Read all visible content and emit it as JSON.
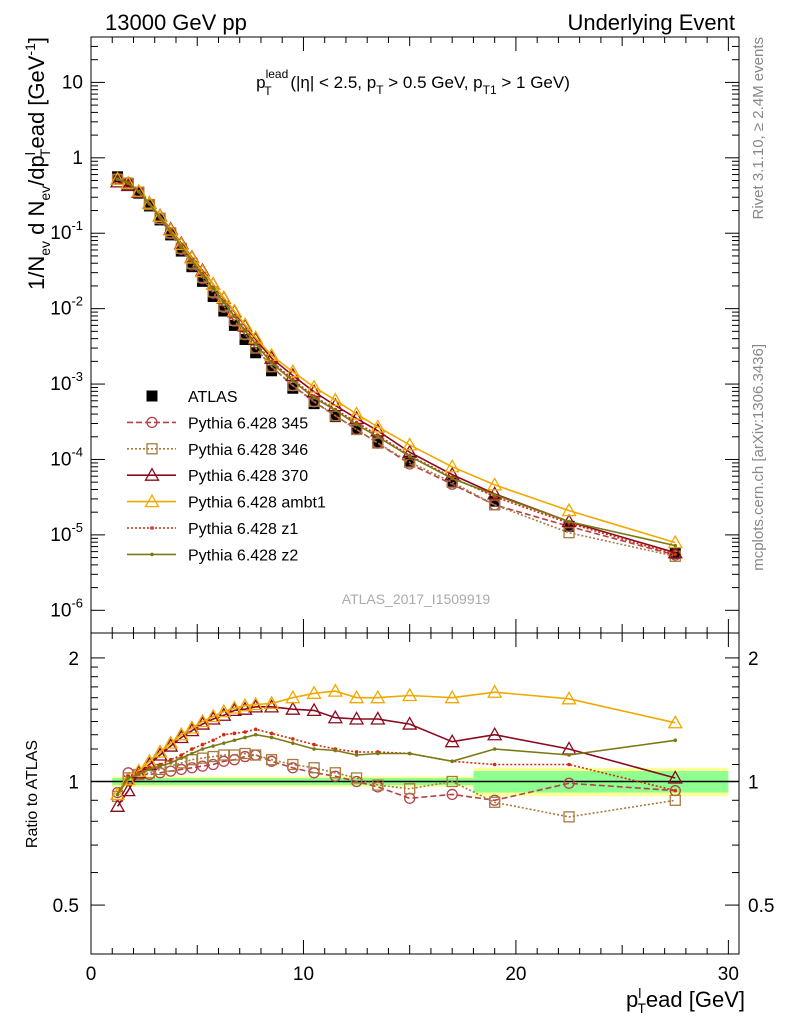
{
  "header": {
    "left": "13000 GeV pp",
    "right": "Underlying Event"
  },
  "rivet_label": "Rivet 3.1.10, ≥ 2.4M events",
  "mcplots_label": "mcplots.cern.ch [arXiv:1306.3436]",
  "analysis_id": "ATLAS_2017_I1509919",
  "colors": {
    "ATLAS": "#000000",
    "p345": "#b5424a",
    "p346": "#a87a3c",
    "p370": "#8b0a1e",
    "ambt1": "#f0a800",
    "z1": "#d62a10",
    "z2": "#7a7a14",
    "band_inner": "#8fff8f",
    "band_outer": "#ffff99"
  },
  "chart_data": [
    {
      "type": "line",
      "panel": "main",
      "title_base": "p",
      "title_sup": "lead",
      "title_sub": "T",
      "title_rest": " (|η| < 2.5, p",
      "title_sub2": "T",
      "title_rest2": " > 0.5 GeV, p",
      "title_sub3": "T1",
      "title_rest3": " > 1 GeV)",
      "ylabel_parts": [
        "1/N",
        "ev",
        " d N",
        "ev",
        "/dp",
        "l",
        "T",
        "ead [GeV",
        "-1",
        "]"
      ],
      "yscale": "log",
      "ylim": [
        5e-07,
        40
      ],
      "xlim": [
        0,
        30.5
      ],
      "y_ticks": [
        {
          "v": 1e-06,
          "base": "10",
          "exp": "-6"
        },
        {
          "v": 1e-05,
          "base": "10",
          "exp": "-5"
        },
        {
          "v": 0.0001,
          "base": "10",
          "exp": "-4"
        },
        {
          "v": 0.001,
          "base": "10",
          "exp": "-3"
        },
        {
          "v": 0.01,
          "base": "10",
          "exp": "-2"
        },
        {
          "v": 0.1,
          "base": "10",
          "exp": "-1"
        },
        {
          "v": 1,
          "base": "1",
          "exp": ""
        },
        {
          "v": 10,
          "base": "10",
          "exp": ""
        }
      ],
      "legend_position": "middle-left",
      "x": [
        1.25,
        1.75,
        2.25,
        2.75,
        3.25,
        3.75,
        4.25,
        4.75,
        5.25,
        5.75,
        6.25,
        6.75,
        7.25,
        7.75,
        8.5,
        9.5,
        10.5,
        11.5,
        12.5,
        13.5,
        15,
        17,
        19,
        22.5,
        27.5
      ],
      "series": [
        {
          "name": "ATLAS",
          "key": "ATLAS",
          "marker": "filled-square",
          "line": "none",
          "values": [
            0.56,
            0.45,
            0.34,
            0.23,
            0.15,
            0.095,
            0.058,
            0.036,
            0.023,
            0.0145,
            0.0093,
            0.006,
            0.0039,
            0.0026,
            0.0015,
            0.00088,
            0.00055,
            0.00037,
            0.00025,
            0.00017,
            9.5e-05,
            5e-05,
            2.8e-05,
            1.3e-05,
            5.7e-06
          ]
        },
        {
          "name": "Pythia 6.428 345",
          "key": "p345",
          "marker": "open-circle",
          "line": "dashed",
          "values": [
            0.53,
            0.47,
            0.35,
            0.24,
            0.155,
            0.099,
            0.061,
            0.038,
            0.025,
            0.016,
            0.0104,
            0.0068,
            0.0045,
            0.003,
            0.0017,
            0.00095,
            0.00058,
            0.00038,
            0.00025,
            0.000165,
            8.7e-05,
            4.7e-05,
            2.5e-05,
            1.3e-05,
            5.4e-06
          ]
        },
        {
          "name": "Pythia 6.428 346",
          "key": "p346",
          "marker": "open-square",
          "line": "dotted",
          "values": [
            0.52,
            0.46,
            0.35,
            0.24,
            0.158,
            0.101,
            0.063,
            0.04,
            0.026,
            0.0167,
            0.0108,
            0.007,
            0.0046,
            0.003,
            0.0017,
            0.00096,
            0.00059,
            0.00038,
            0.00025,
            0.000165,
            9.2e-05,
            5e-05,
            2.5e-05,
            1.07e-05,
            5.2e-06
          ]
        },
        {
          "name": "Pythia 6.428 370",
          "key": "p370",
          "marker": "open-triangle",
          "line": "solid",
          "values": [
            0.48,
            0.43,
            0.35,
            0.25,
            0.17,
            0.113,
            0.073,
            0.048,
            0.032,
            0.021,
            0.0138,
            0.0091,
            0.0059,
            0.0039,
            0.0022,
            0.0013,
            0.00079,
            0.00052,
            0.00035,
            0.00024,
            0.000125,
            6.3e-05,
            3.5e-05,
            1.5e-05,
            5.8e-06
          ]
        },
        {
          "name": "Pythia 6.428 ambt1",
          "key": "ambt1",
          "marker": "open-triangle",
          "line": "solid",
          "values": [
            0.52,
            0.46,
            0.36,
            0.25,
            0.168,
            0.11,
            0.071,
            0.047,
            0.031,
            0.021,
            0.014,
            0.0093,
            0.0061,
            0.0041,
            0.0024,
            0.00146,
            0.00091,
            0.00061,
            0.0004,
            0.00027,
            0.000156,
            8e-05,
            4.6e-05,
            2.1e-05,
            7.9e-06
          ]
        },
        {
          "name": "Pythia 6.428 z1",
          "key": "z1",
          "marker": "dot",
          "line": "dotted",
          "values": [
            0.52,
            0.47,
            0.36,
            0.245,
            0.16,
            0.105,
            0.067,
            0.044,
            0.029,
            0.019,
            0.0125,
            0.0081,
            0.0052,
            0.0035,
            0.002,
            0.00115,
            0.00069,
            0.00046,
            0.00031,
            0.00021,
            0.000113,
            5.8e-05,
            3.2e-05,
            1.43e-05,
            5.5e-06
          ]
        },
        {
          "name": "Pythia 6.428 z2",
          "key": "z2",
          "marker": "dot",
          "line": "solid",
          "values": [
            0.52,
            0.46,
            0.355,
            0.245,
            0.163,
            0.105,
            0.067,
            0.043,
            0.028,
            0.0185,
            0.0121,
            0.0079,
            0.0051,
            0.0034,
            0.0019,
            0.0011,
            0.00066,
            0.00045,
            0.00029,
            0.0002,
            0.00011,
            5.6e-05,
            3.4e-05,
            1.5e-05,
            7.2e-06
          ]
        }
      ]
    },
    {
      "type": "line",
      "panel": "ratio",
      "ylabel": "Ratio to ATLAS",
      "xlabel_parts": [
        "p",
        "l",
        "T",
        "ead [GeV]"
      ],
      "xlim": [
        0,
        30.5
      ],
      "ylim": [
        0.38,
        2.3
      ],
      "yscale": "log",
      "y_ticks": [
        {
          "v": 0.5,
          "label": "0.5"
        },
        {
          "v": 1,
          "label": "1"
        },
        {
          "v": 2,
          "label": "2"
        }
      ],
      "x_ticks": [
        {
          "v": 0,
          "label": "0"
        },
        {
          "v": 10,
          "label": "10"
        },
        {
          "v": 20,
          "label": "20"
        },
        {
          "v": 30,
          "label": "30"
        }
      ],
      "x": [
        1.25,
        1.75,
        2.25,
        2.75,
        3.25,
        3.75,
        4.25,
        4.75,
        5.25,
        5.75,
        6.25,
        6.75,
        7.25,
        7.75,
        8.5,
        9.5,
        10.5,
        11.5,
        12.5,
        13.5,
        15,
        17,
        19,
        22.5,
        27.5
      ],
      "bands": [
        {
          "x": [
            1,
            18
          ],
          "inner": 0.02,
          "outer": 0.03
        },
        {
          "x": [
            18,
            25
          ],
          "inner": 0.06,
          "outer": 0.08
        },
        {
          "x": [
            25,
            30
          ],
          "inner": 0.06,
          "outer": 0.08
        }
      ],
      "series": [
        {
          "name": "Pythia 6.428 345",
          "key": "p345",
          "marker": "open-circle",
          "line": "dashed",
          "values": [
            0.94,
            1.05,
            1.04,
            1.04,
            1.05,
            1.06,
            1.07,
            1.08,
            1.09,
            1.1,
            1.12,
            1.13,
            1.15,
            1.16,
            1.12,
            1.08,
            1.05,
            1.03,
            1.0,
            0.97,
            0.91,
            0.93,
            0.9,
            0.99,
            0.95
          ]
        },
        {
          "name": "Pythia 6.428 346",
          "key": "p346",
          "marker": "open-square",
          "line": "dotted",
          "values": [
            0.92,
            1.02,
            1.04,
            1.05,
            1.07,
            1.09,
            1.11,
            1.13,
            1.14,
            1.15,
            1.16,
            1.16,
            1.17,
            1.16,
            1.13,
            1.1,
            1.08,
            1.05,
            1.02,
            0.98,
            0.96,
            1.0,
            0.89,
            0.82,
            0.9
          ]
        },
        {
          "name": "Pythia 6.428 370",
          "key": "p370",
          "marker": "open-triangle",
          "line": "solid",
          "values": [
            0.87,
            0.95,
            1.05,
            1.1,
            1.16,
            1.22,
            1.28,
            1.33,
            1.38,
            1.42,
            1.45,
            1.49,
            1.5,
            1.52,
            1.52,
            1.5,
            1.49,
            1.43,
            1.42,
            1.42,
            1.38,
            1.25,
            1.3,
            1.2,
            1.02
          ]
        },
        {
          "name": "Pythia 6.428 ambt1",
          "key": "ambt1",
          "marker": "open-triangle",
          "line": "solid",
          "values": [
            0.93,
            1.01,
            1.06,
            1.12,
            1.18,
            1.24,
            1.3,
            1.35,
            1.4,
            1.44,
            1.48,
            1.51,
            1.53,
            1.54,
            1.55,
            1.6,
            1.64,
            1.66,
            1.6,
            1.6,
            1.62,
            1.6,
            1.65,
            1.59,
            1.39
          ]
        },
        {
          "name": "Pythia 6.428 z1",
          "key": "z1",
          "marker": "dot",
          "line": "dotted",
          "values": [
            0.93,
            1.03,
            1.05,
            1.08,
            1.1,
            1.13,
            1.16,
            1.2,
            1.23,
            1.26,
            1.3,
            1.31,
            1.32,
            1.34,
            1.31,
            1.27,
            1.23,
            1.2,
            1.18,
            1.18,
            1.17,
            1.12,
            1.1,
            1.1,
            0.95
          ]
        },
        {
          "name": "Pythia 6.428 z2",
          "key": "z2",
          "marker": "dot",
          "line": "solid",
          "values": [
            0.93,
            1.02,
            1.04,
            1.07,
            1.09,
            1.11,
            1.14,
            1.17,
            1.2,
            1.22,
            1.24,
            1.26,
            1.28,
            1.3,
            1.28,
            1.24,
            1.2,
            1.19,
            1.16,
            1.17,
            1.17,
            1.12,
            1.2,
            1.16,
            1.26
          ]
        }
      ]
    }
  ]
}
